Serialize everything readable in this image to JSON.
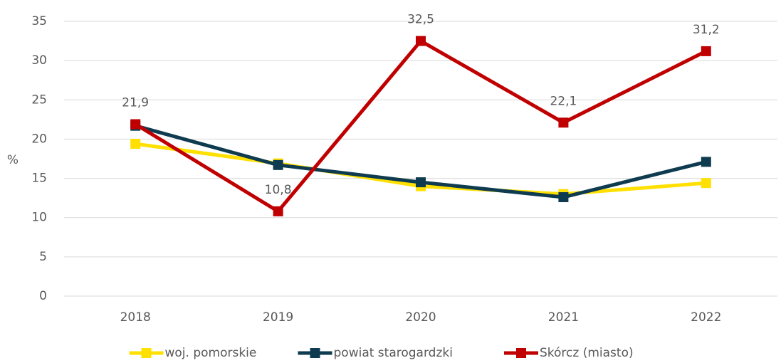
{
  "chart_data": {
    "type": "line",
    "y_label": "%",
    "categories": [
      "2018",
      "2019",
      "2020",
      "2021",
      "2022"
    ],
    "series": [
      {
        "name": "woj. pomorskie",
        "color": "#ffe000",
        "values": [
          19.4,
          16.9,
          14.0,
          13.0,
          14.4
        ]
      },
      {
        "name": "powiat starogardzki",
        "color": "#0e3b4f",
        "values": [
          21.7,
          16.7,
          14.5,
          12.6,
          17.1
        ]
      },
      {
        "name": "Skórcz (miasto)",
        "color": "#c00000",
        "values": [
          21.9,
          10.8,
          32.5,
          22.1,
          31.2
        ],
        "value_labels": [
          "21,9",
          "10,8",
          "32,5",
          "22,1",
          "31,2"
        ]
      }
    ],
    "ylim": [
      0,
      35
    ],
    "yticks": [
      0,
      5,
      10,
      15,
      20,
      25,
      30,
      35
    ],
    "grid": true,
    "legend": "bottom"
  }
}
